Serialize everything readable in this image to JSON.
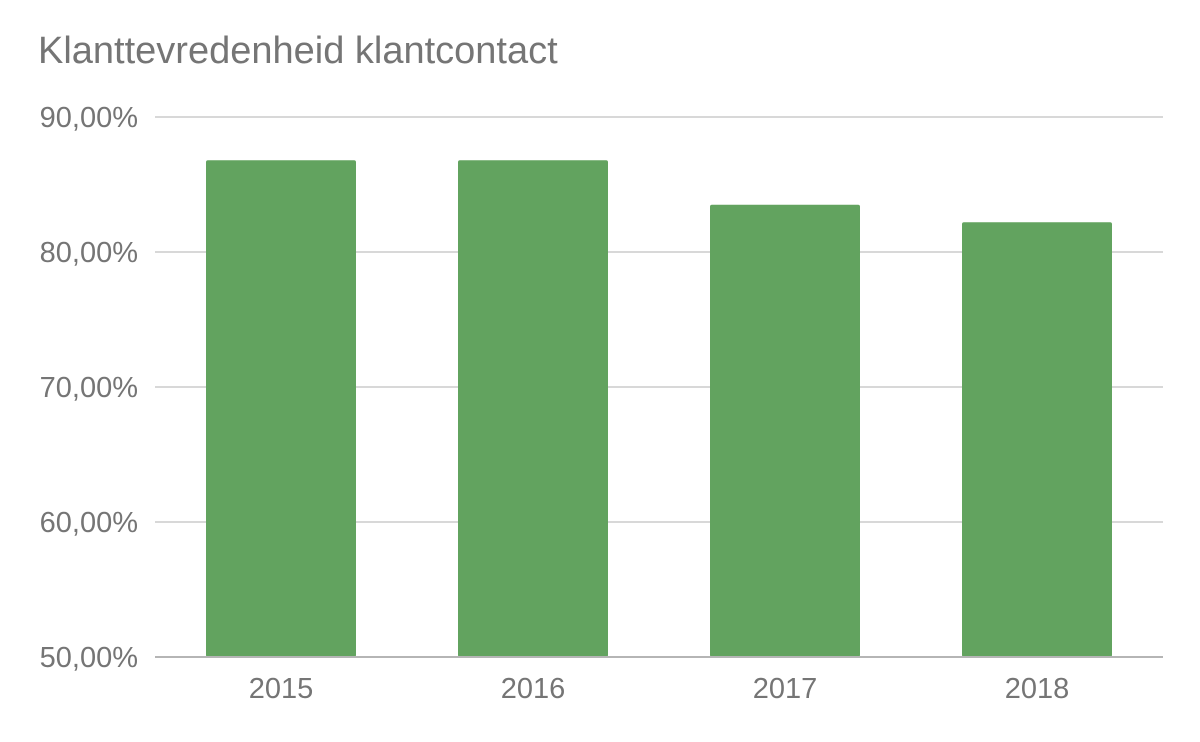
{
  "chart_data": {
    "type": "bar",
    "title": "Klanttevredenheid klantcontact",
    "xlabel": "",
    "ylabel": "",
    "categories": [
      "2015",
      "2016",
      "2017",
      "2018"
    ],
    "values": [
      86.8,
      86.8,
      83.5,
      82.2
    ],
    "ylim": [
      50,
      90
    ],
    "yticks": [
      50,
      60,
      70,
      80,
      90
    ],
    "ytick_labels": [
      "50,00%",
      "60,00%",
      "70,00%",
      "80,00%",
      "90,00%"
    ],
    "grid": true,
    "legend": "none",
    "bar_color": "#62a35f",
    "gridline_color": "#cccccc",
    "axis_color": "#b5b5b5",
    "text_color": "#757575"
  }
}
